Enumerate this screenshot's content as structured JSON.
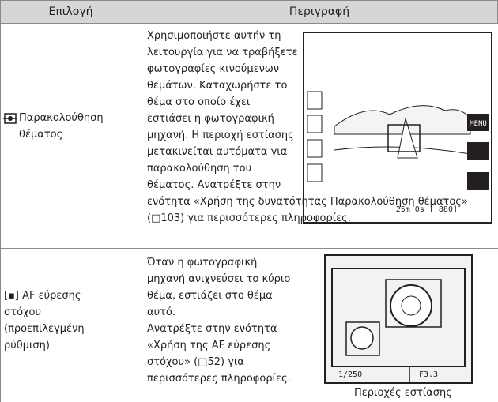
{
  "table": {
    "header": [
      "Επιλογή",
      "Περιγραφή"
    ],
    "rows": [
      {
        "option": [
          "Παρακολούθηση",
          "θέματος"
        ],
        "description": [
          "Χρησιμοποιήστε αυτήν τη",
          "λειτουργία για να τραβήξετε",
          "φωτογραφίες κινούμενων",
          "θεμάτων. Καταχωρήστε το",
          "θέμα στο οποίο έχει",
          "εστιάσει η φωτογραφική",
          "μηχανή. Η περιοχή εστίασης",
          "μετακινείται αυτόματα για",
          "παρακολούθηση του",
          "θέματος. Ανατρέξτε στην",
          "ενότητα «Χρήση της δυνατότητας Παρακολούθηση θέματος»",
          "(□103) για περισσότερες πληροφορίες."
        ],
        "screen": {
          "menu": "MENU",
          "remaining": "25m 0s [ 880]"
        }
      },
      {
        "option": [
          "[▪] AF εύρεσης",
          "στόχου",
          "(προεπιλεγμένη",
          "ρύθμιση)"
        ],
        "description": [
          "Όταν η φωτογραφική",
          "μηχανή ανιχνεύσει το κύριο",
          "θέμα, εστιάζει στο θέμα",
          "αυτό.",
          "Ανατρέξτε στην ενότητα",
          "«Χρήση της AF εύρεσης",
          "στόχου» (□52) για",
          "περισσότερες πληροφορίες."
        ],
        "screen": {
          "shutter": "1/250",
          "aperture": "F3.3",
          "caption": "Περιοχές εστίασης"
        }
      }
    ]
  }
}
